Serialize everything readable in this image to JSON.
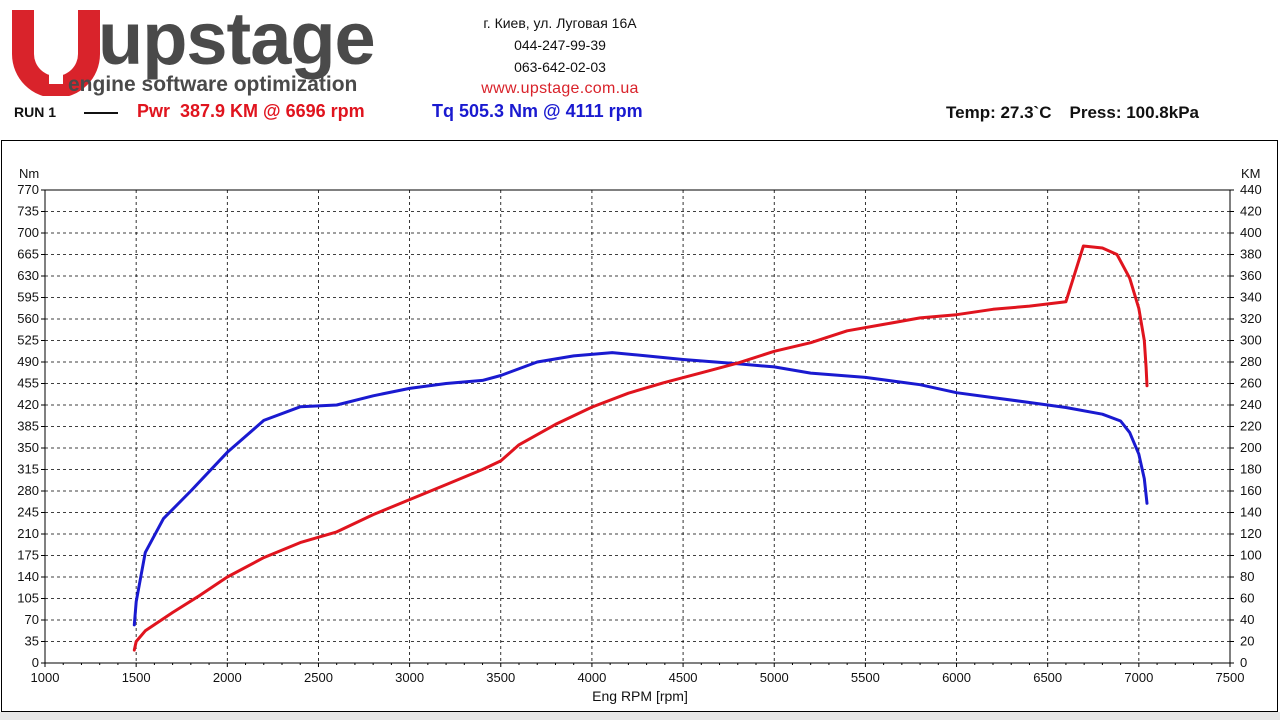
{
  "header": {
    "brand": "upstage",
    "tagline": "engine software optimization",
    "address": "г. Киев, ул. Луговая 16А",
    "phone1": "044-247-99-39",
    "phone2": "063-642-02-03",
    "website": "www.upstage.com.ua",
    "colors": {
      "brand_red": "#d9232b",
      "brand_gray": "#4a4a4a"
    }
  },
  "run": {
    "label": "RUN 1",
    "power_summary": "Pwr  387.9 KM @ 6696 rpm",
    "torque_summary": "Tq 505.3 Nm @ 4111 rpm",
    "temp": "Temp: 27.3`C",
    "pressure": "Press: 100.8kPa"
  },
  "chart_data": {
    "type": "line",
    "xlabel": "Eng RPM [rpm]",
    "ylabel_left": "Nm",
    "ylabel_right": "KM",
    "xlim": [
      1000,
      7500
    ],
    "ylim_left": [
      0,
      770
    ],
    "ylim_right": [
      0,
      440
    ],
    "x_ticks": [
      "1000",
      "1500",
      "2000",
      "2500",
      "3000",
      "3500",
      "4000",
      "4500",
      "5000",
      "5500",
      "6000",
      "6500",
      "7000",
      "7500"
    ],
    "y_left_ticks": [
      "0",
      "35",
      "70",
      "105",
      "140",
      "175",
      "210",
      "245",
      "280",
      "315",
      "350",
      "385",
      "420",
      "455",
      "490",
      "525",
      "560",
      "595",
      "630",
      "665",
      "700",
      "735",
      "770"
    ],
    "y_right_ticks": [
      "0",
      "20",
      "40",
      "60",
      "80",
      "100",
      "120",
      "140",
      "160",
      "180",
      "200",
      "220",
      "240",
      "260",
      "280",
      "300",
      "320",
      "340",
      "360",
      "380",
      "400",
      "420",
      "440"
    ],
    "grid": true,
    "series": [
      {
        "axis": "left",
        "color": "#1a1ad0",
        "points": [
          [
            1490,
            62
          ],
          [
            1495,
            80
          ],
          [
            1500,
            100
          ],
          [
            1550,
            180
          ],
          [
            1650,
            235
          ],
          [
            1800,
            280
          ],
          [
            2000,
            343
          ],
          [
            2200,
            395
          ],
          [
            2400,
            417
          ],
          [
            2600,
            420
          ],
          [
            2800,
            435
          ],
          [
            3000,
            447
          ],
          [
            3200,
            455
          ],
          [
            3400,
            460
          ],
          [
            3500,
            468
          ],
          [
            3700,
            490
          ],
          [
            3900,
            500
          ],
          [
            4111,
            505.3
          ],
          [
            4300,
            500
          ],
          [
            4500,
            494
          ],
          [
            4800,
            487
          ],
          [
            5000,
            482
          ],
          [
            5200,
            472
          ],
          [
            5500,
            465
          ],
          [
            5800,
            453
          ],
          [
            6000,
            440
          ],
          [
            6200,
            432
          ],
          [
            6400,
            424
          ],
          [
            6600,
            416
          ],
          [
            6800,
            405
          ],
          [
            6900,
            394
          ],
          [
            6950,
            375
          ],
          [
            7000,
            340
          ],
          [
            7030,
            300
          ],
          [
            7045,
            260
          ]
        ]
      },
      {
        "axis": "right",
        "color": "#e0141e",
        "points": [
          [
            1490,
            12
          ],
          [
            1500,
            20
          ],
          [
            1550,
            30
          ],
          [
            1700,
            47
          ],
          [
            1850,
            63
          ],
          [
            2000,
            80
          ],
          [
            2200,
            98
          ],
          [
            2400,
            112
          ],
          [
            2600,
            122
          ],
          [
            2800,
            138
          ],
          [
            3000,
            152
          ],
          [
            3200,
            166
          ],
          [
            3400,
            180
          ],
          [
            3500,
            188
          ],
          [
            3600,
            203
          ],
          [
            3800,
            222
          ],
          [
            4000,
            238
          ],
          [
            4200,
            251
          ],
          [
            4400,
            261
          ],
          [
            4600,
            270
          ],
          [
            4800,
            279
          ],
          [
            5000,
            290
          ],
          [
            5200,
            298
          ],
          [
            5400,
            309
          ],
          [
            5600,
            315
          ],
          [
            5800,
            321
          ],
          [
            6000,
            324
          ],
          [
            6200,
            329
          ],
          [
            6400,
            332
          ],
          [
            6600,
            336
          ],
          [
            6696,
            387.9
          ],
          [
            6800,
            386
          ],
          [
            6880,
            380
          ],
          [
            6950,
            358
          ],
          [
            7000,
            330
          ],
          [
            7030,
            300
          ],
          [
            7040,
            275
          ],
          [
            7045,
            258
          ]
        ]
      }
    ],
    "peak_values": {
      "power_km": 387.9,
      "power_rpm": 6696,
      "torque_nm": 505.3,
      "torque_rpm": 4111
    }
  }
}
